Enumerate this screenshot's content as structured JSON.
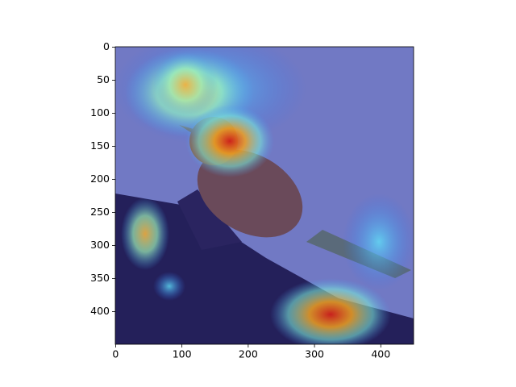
{
  "chart_data": {
    "type": "image",
    "xlim": [
      -0.5,
      449.5
    ],
    "ylim": [
      449.5,
      -0.5
    ],
    "xticks": [
      0,
      100,
      200,
      300,
      400
    ],
    "yticks": [
      0,
      50,
      100,
      150,
      200,
      250,
      300,
      350,
      400
    ]
  }
}
